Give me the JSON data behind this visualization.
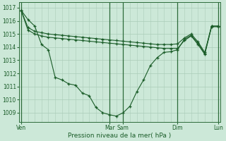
{
  "xlabel": "Pression niveau de la mer( hPa )",
  "bg_color": "#cce8d8",
  "grid_color": "#aaccb8",
  "line_color": "#1a5c28",
  "vline_color": "#2d6b3a",
  "ylim": [
    1008.3,
    1017.4
  ],
  "yticks": [
    1009,
    1010,
    1011,
    1012,
    1013,
    1014,
    1015,
    1016,
    1017
  ],
  "xlim": [
    0,
    29
  ],
  "day_positions": [
    0,
    13,
    15,
    23,
    29
  ],
  "day_labels": [
    "Ven",
    "Mar",
    "Sam",
    "Dim",
    "Lun"
  ],
  "series_main": [
    0,
    1016.8,
    1,
    1016.1,
    2,
    1015.6,
    3,
    1014.2,
    4,
    1013.8,
    5,
    1011.7,
    6,
    1011.5,
    7,
    1011.2,
    8,
    1011.1,
    9,
    1010.5,
    10,
    1010.3,
    11,
    1009.4,
    12,
    1009.0,
    13,
    1008.85,
    14,
    1008.75,
    15,
    1009.0,
    16,
    1009.5,
    17,
    1010.6,
    18,
    1011.5,
    19,
    1012.6,
    20,
    1013.2,
    21,
    1013.6,
    22,
    1013.65,
    23,
    1013.8,
    24,
    1014.6,
    25,
    1014.9,
    26,
    1014.3,
    27,
    1013.5,
    28,
    1015.6,
    29,
    1015.6
  ],
  "series_upper": [
    0,
    1016.8,
    1,
    1015.5,
    2,
    1015.2,
    3,
    1015.1,
    4,
    1015.0,
    5,
    1014.95,
    6,
    1014.9,
    7,
    1014.85,
    8,
    1014.8,
    9,
    1014.75,
    10,
    1014.7,
    11,
    1014.65,
    12,
    1014.6,
    13,
    1014.55,
    14,
    1014.5,
    15,
    1014.45,
    16,
    1014.4,
    17,
    1014.35,
    18,
    1014.3,
    19,
    1014.25,
    20,
    1014.2,
    21,
    1014.2,
    22,
    1014.2,
    23,
    1014.25,
    24,
    1014.7,
    25,
    1015.0,
    26,
    1014.4,
    27,
    1013.6,
    28,
    1015.6,
    29,
    1015.6
  ],
  "series_lower": [
    0,
    1016.8,
    1,
    1015.3,
    2,
    1015.0,
    3,
    1014.85,
    4,
    1014.75,
    5,
    1014.7,
    6,
    1014.65,
    7,
    1014.6,
    8,
    1014.55,
    9,
    1014.5,
    10,
    1014.45,
    11,
    1014.4,
    12,
    1014.35,
    13,
    1014.3,
    14,
    1014.25,
    15,
    1014.2,
    16,
    1014.15,
    17,
    1014.1,
    18,
    1014.05,
    19,
    1014.0,
    20,
    1013.95,
    21,
    1013.9,
    22,
    1013.9,
    23,
    1013.9,
    24,
    1014.5,
    25,
    1014.85,
    26,
    1014.2,
    27,
    1013.45,
    28,
    1015.55,
    29,
    1015.55
  ]
}
